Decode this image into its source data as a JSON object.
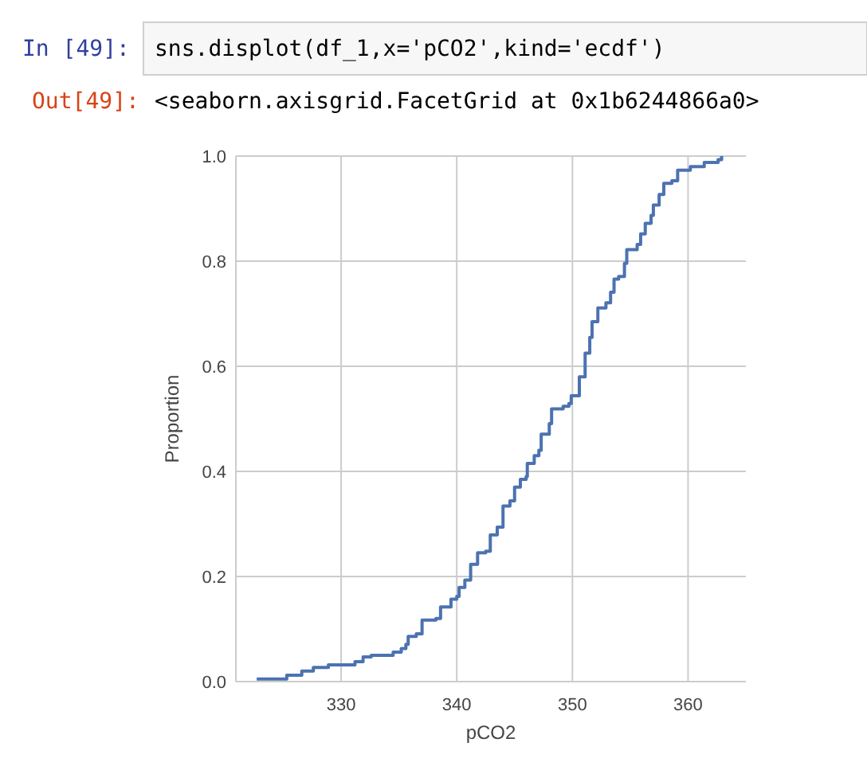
{
  "chart_data": {
    "type": "step",
    "xlabel": "pCO2",
    "ylabel": "Proportion",
    "annotations": [
      "In  [49]:",
      "sns.displot(df_1,x='pCO2',kind='ecdf')",
      "Out[49]:",
      "<seaborn.axisgrid.FacetGrid at 0x1b6244866a0>"
    ],
    "xlim": [
      320.9,
      365
    ],
    "xticks": [
      330,
      340,
      350,
      360
    ],
    "ylim": [
      0,
      1
    ],
    "yticks": [
      {
        "value": 0,
        "label": "0.0"
      },
      {
        "value": 0.2,
        "label": "0.2"
      },
      {
        "value": 0.4,
        "label": "0.4"
      },
      {
        "value": 0.6,
        "label": "0.6"
      },
      {
        "value": 0.8,
        "label": "0.8"
      },
      {
        "value": 1,
        "label": "1.0"
      }
    ],
    "grid": true,
    "series": [
      {
        "color": "#4c72b0",
        "x": [
          322.7,
          325.3,
          326.6,
          327.6,
          328.9,
          330.6,
          331.2,
          331.9,
          332.6,
          334.5,
          335.2,
          335.6,
          335.8,
          336.5,
          337.0,
          338.2,
          338.6,
          339.5,
          340.0,
          340.2,
          340.7,
          341.2,
          341.8,
          342.5,
          342.9,
          343.5,
          344.0,
          344.6,
          345.0,
          345.5,
          346.0,
          346.1,
          346.7,
          347.1,
          347.3,
          348.0,
          348.2,
          349.2,
          349.7,
          349.9,
          350.6,
          351.1,
          351.5,
          351.7,
          352.2,
          352.9,
          353.3,
          353.6,
          354.0,
          354.5,
          354.7,
          355.6,
          355.9,
          356.3,
          356.8,
          357.0,
          357.5,
          357.9,
          358.6,
          359.1,
          360.2,
          361.4,
          362.6,
          362.9
        ],
        "values": [
          0.005,
          0.012,
          0.02,
          0.027,
          0.032,
          0.032,
          0.038,
          0.047,
          0.05,
          0.056,
          0.063,
          0.071,
          0.086,
          0.091,
          0.117,
          0.12,
          0.142,
          0.157,
          0.162,
          0.179,
          0.193,
          0.223,
          0.245,
          0.248,
          0.279,
          0.294,
          0.334,
          0.344,
          0.37,
          0.385,
          0.39,
          0.415,
          0.43,
          0.44,
          0.471,
          0.491,
          0.519,
          0.524,
          0.529,
          0.544,
          0.58,
          0.625,
          0.655,
          0.685,
          0.711,
          0.721,
          0.741,
          0.766,
          0.771,
          0.796,
          0.822,
          0.832,
          0.852,
          0.872,
          0.887,
          0.907,
          0.927,
          0.948,
          0.953,
          0.973,
          0.98,
          0.988,
          0.993,
          1.0
        ]
      }
    ]
  }
}
